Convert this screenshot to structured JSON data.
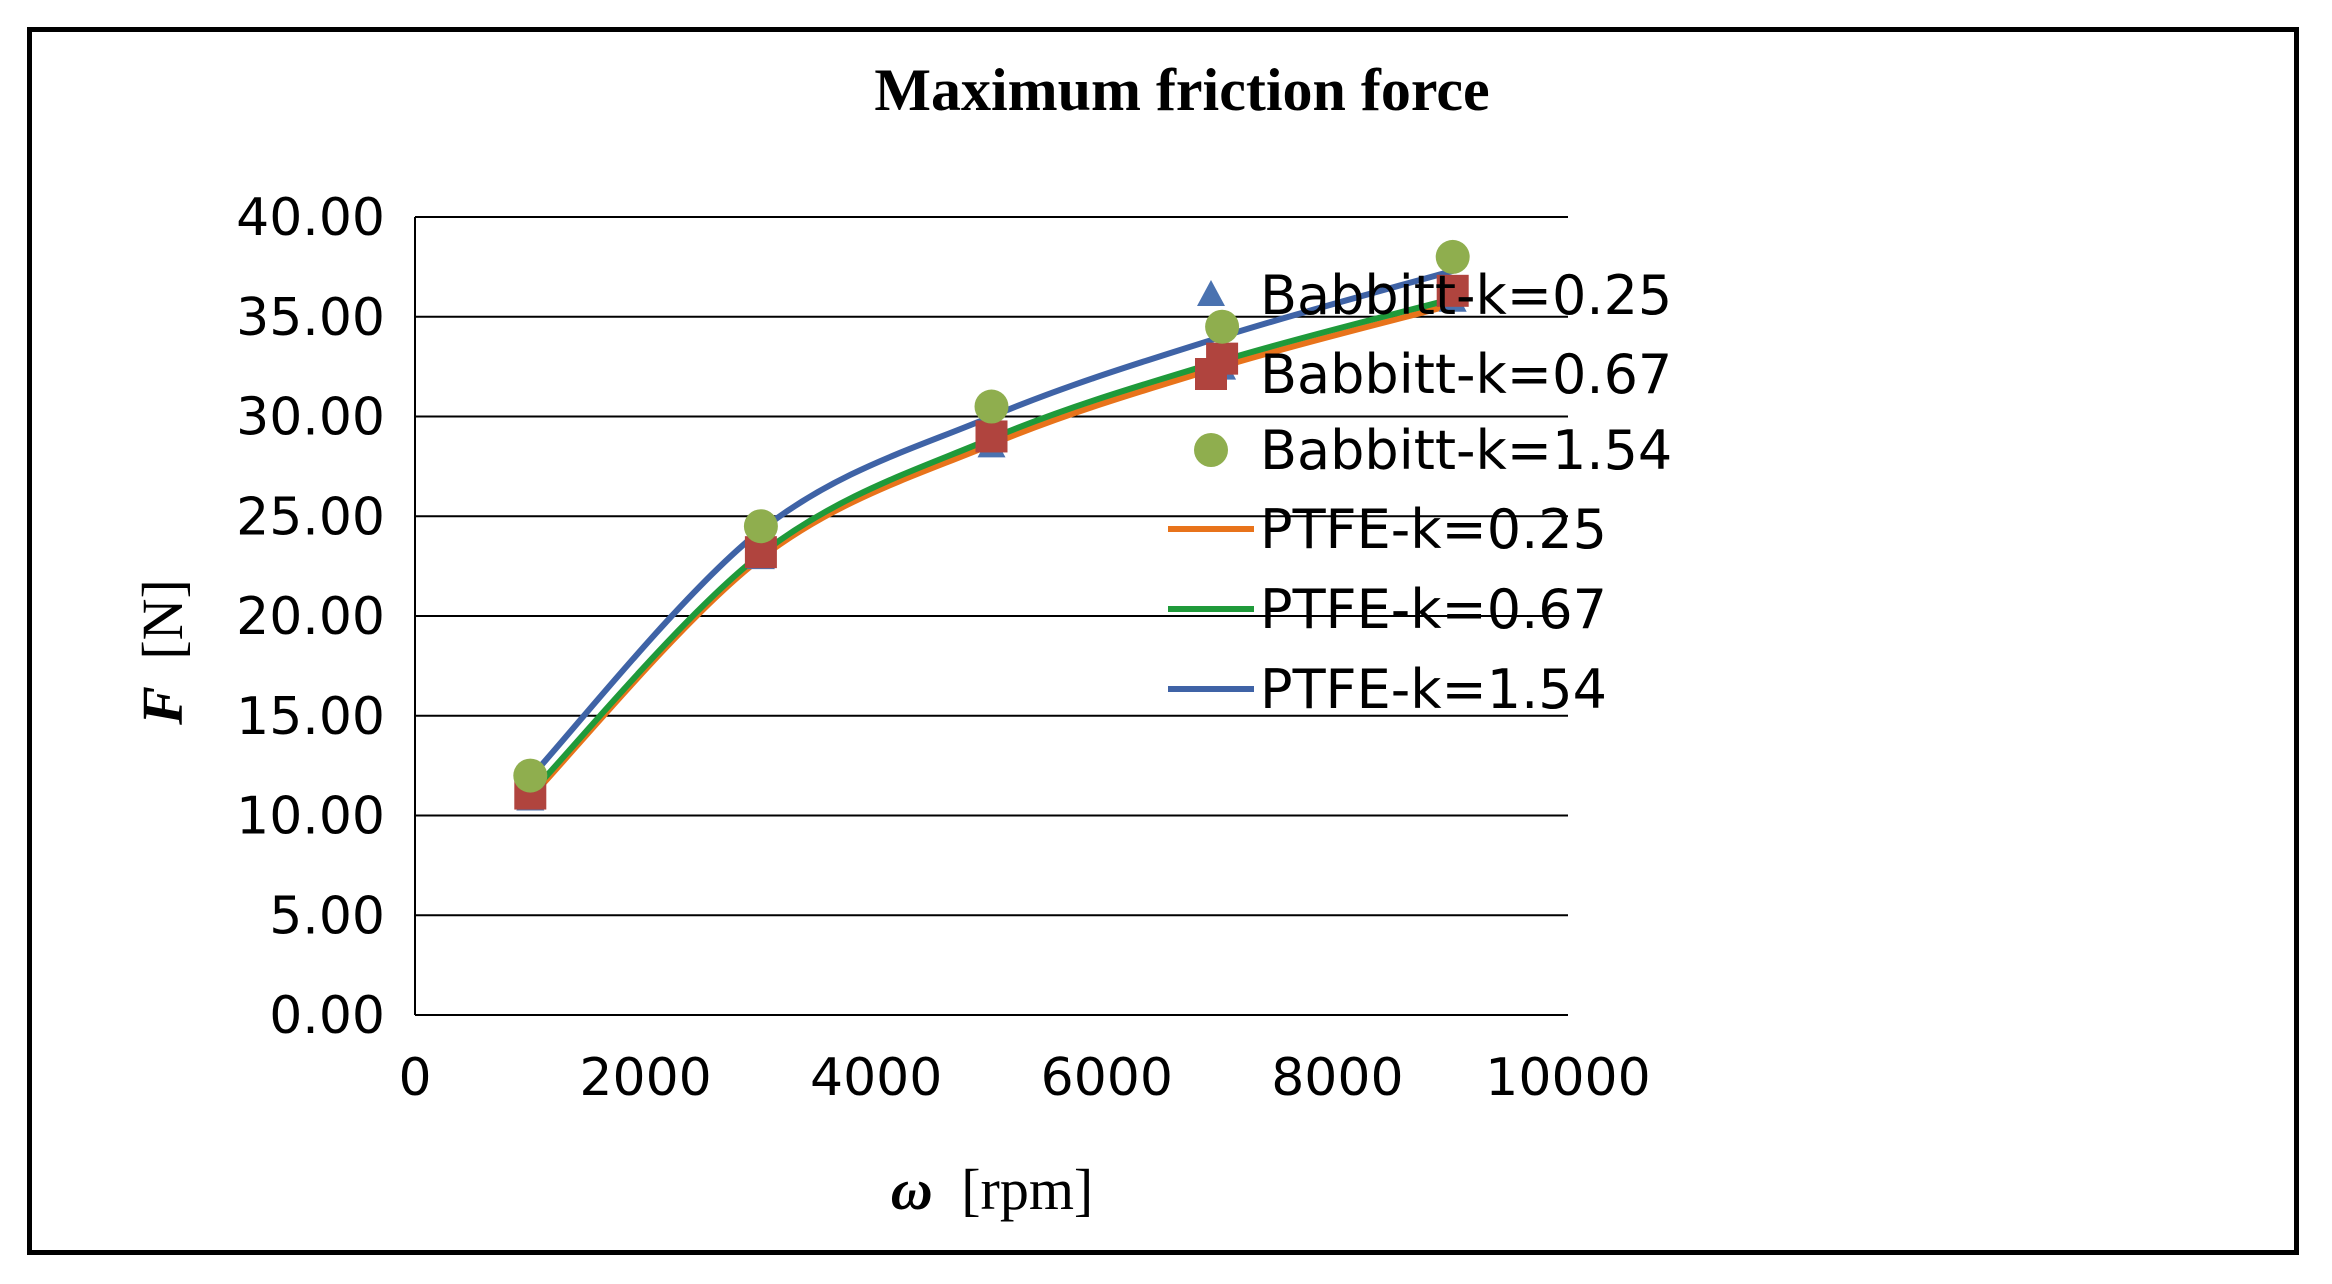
{
  "chart_data": {
    "type": "line",
    "title": "Maximum friction force",
    "xlabel": {
      "symbol": "ω",
      "unit": "[rpm]"
    },
    "ylabel": {
      "symbol": "F",
      "unit": "[N]"
    },
    "xlim": [
      0,
      10000
    ],
    "ylim": [
      0,
      40
    ],
    "xticks": [
      "0",
      "2000",
      "4000",
      "6000",
      "8000",
      "10000"
    ],
    "yticks": [
      "0.00",
      "5.00",
      "10.00",
      "15.00",
      "20.00",
      "25.00",
      "30.00",
      "35.00",
      "40.00"
    ],
    "grid": "horizontal",
    "legend_position": "right",
    "series": [
      {
        "name": "Babbitt-k=0.25",
        "kind": "marker",
        "marker": "triangle",
        "color": "#4a72b0",
        "x": [
          1000,
          3000,
          5000,
          7000,
          9000
        ],
        "y": [
          10.8,
          22.9,
          28.5,
          32.4,
          35.8
        ]
      },
      {
        "name": "Babbitt-k=0.67",
        "kind": "marker",
        "marker": "square",
        "color": "#b0443e",
        "x": [
          1000,
          3000,
          5000,
          7000,
          9000
        ],
        "y": [
          11.1,
          23.2,
          29.0,
          32.9,
          36.3
        ]
      },
      {
        "name": "Babbitt-k=1.54",
        "kind": "marker",
        "marker": "circle",
        "color": "#8fae4e",
        "x": [
          1000,
          3000,
          5000,
          7000,
          9000
        ],
        "y": [
          12.0,
          24.5,
          30.5,
          34.5,
          38.0
        ]
      },
      {
        "name": "PTFE-k=0.25",
        "kind": "line",
        "color": "#e8731b",
        "x": [
          1000,
          3000,
          5000,
          7000,
          9000
        ],
        "y": [
          10.9,
          22.9,
          28.6,
          32.5,
          35.6
        ]
      },
      {
        "name": "PTFE-k=0.67",
        "kind": "line",
        "color": "#1f9a3a",
        "x": [
          1000,
          3000,
          5000,
          7000,
          9000
        ],
        "y": [
          11.1,
          23.1,
          28.9,
          32.8,
          35.9
        ]
      },
      {
        "name": "PTFE-k=1.54",
        "kind": "line",
        "color": "#3f63a6",
        "x": [
          1000,
          3000,
          5000,
          7000,
          9000
        ],
        "y": [
          11.9,
          24.3,
          30.0,
          34.0,
          37.3
        ]
      }
    ],
    "legend": [
      "Babbitt-k=0.25",
      "Babbitt-k=0.67",
      "Babbitt-k=1.54",
      "PTFE-k=0.25",
      "PTFE-k=0.67",
      "PTFE-k=1.54"
    ]
  }
}
